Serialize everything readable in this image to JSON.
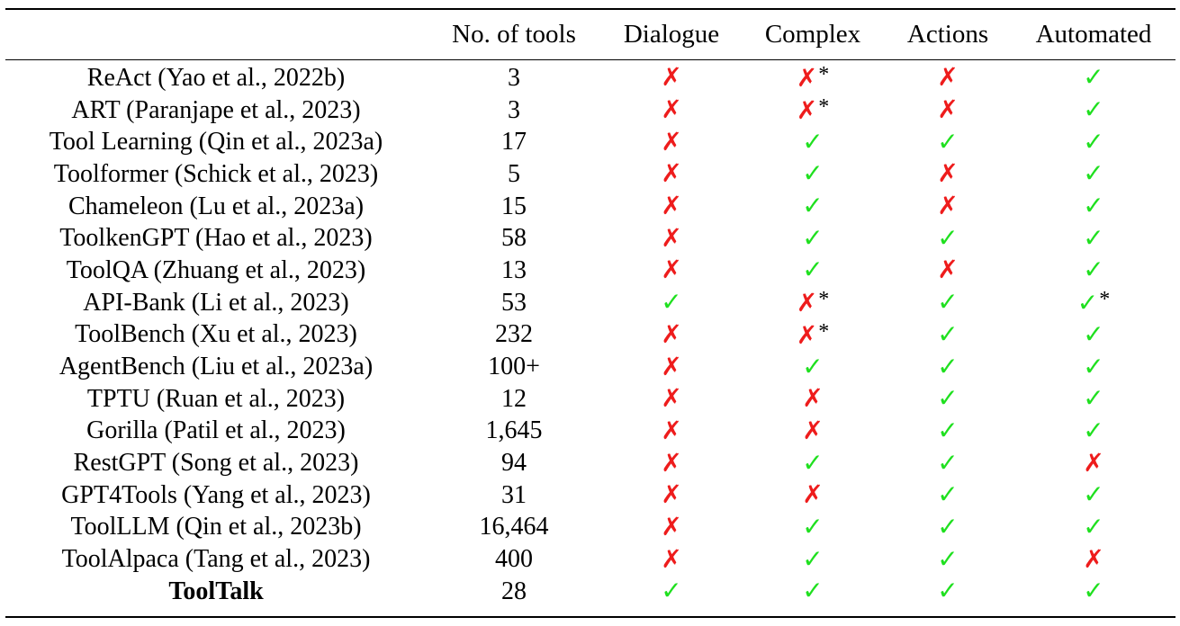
{
  "table": {
    "headers": [
      "",
      "No. of tools",
      "Dialogue",
      "Complex",
      "Actions",
      "Automated"
    ],
    "colors": {
      "check": "#1fe01f",
      "cross": "#ee1c1c"
    },
    "rows": [
      {
        "method": "ReAct (Yao et al., 2022b)",
        "tools": "3",
        "dialogue": "✗",
        "complex": "✗",
        "complex_star": "*",
        "actions": "✗",
        "automated": "✓"
      },
      {
        "method": "ART (Paranjape et al., 2023)",
        "tools": "3",
        "dialogue": "✗",
        "complex": "✗",
        "complex_star": "*",
        "actions": "✗",
        "automated": "✓"
      },
      {
        "method": "Tool Learning (Qin et al., 2023a)",
        "tools": "17",
        "dialogue": "✗",
        "complex": "✓",
        "actions": "✓",
        "automated": "✓"
      },
      {
        "method": "Toolformer (Schick et al., 2023)",
        "tools": "5",
        "dialogue": "✗",
        "complex": "✓",
        "actions": "✗",
        "automated": "✓"
      },
      {
        "method": "Chameleon (Lu et al., 2023a)",
        "tools": "15",
        "dialogue": "✗",
        "complex": "✓",
        "actions": "✗",
        "automated": "✓"
      },
      {
        "method": "ToolkenGPT (Hao et al., 2023)",
        "tools": "58",
        "dialogue": "✗",
        "complex": "✓",
        "actions": "✓",
        "automated": "✓"
      },
      {
        "method": "ToolQA (Zhuang et al., 2023)",
        "tools": "13",
        "dialogue": "✗",
        "complex": "✓",
        "actions": "✗",
        "automated": "✓"
      },
      {
        "method": "API-Bank (Li et al., 2023)",
        "tools": "53",
        "dialogue": "✓",
        "complex": "✗",
        "complex_star": "*",
        "actions": "✓",
        "automated": "✓",
        "automated_star": "*"
      },
      {
        "method": "ToolBench (Xu et al., 2023)",
        "tools": "232",
        "dialogue": "✗",
        "complex": "✗",
        "complex_star": "*",
        "actions": "✓",
        "automated": "✓"
      },
      {
        "method": "AgentBench (Liu et al., 2023a)",
        "tools": "100+",
        "dialogue": "✗",
        "complex": "✓",
        "actions": "✓",
        "automated": "✓"
      },
      {
        "method": "TPTU (Ruan et al., 2023)",
        "tools": "12",
        "dialogue": "✗",
        "complex": "✗",
        "actions": "✓",
        "automated": "✓"
      },
      {
        "method": "Gorilla (Patil et al., 2023)",
        "tools": "1,645",
        "dialogue": "✗",
        "complex": "✗",
        "actions": "✓",
        "automated": "✓"
      },
      {
        "method": "RestGPT (Song et al., 2023)",
        "tools": "94",
        "dialogue": "✗",
        "complex": "✓",
        "actions": "✓",
        "automated": "✗"
      },
      {
        "method": "GPT4Tools (Yang et al., 2023)",
        "tools": "31",
        "dialogue": "✗",
        "complex": "✗",
        "actions": "✓",
        "automated": "✓"
      },
      {
        "method": "ToolLLM (Qin et al., 2023b)",
        "tools": "16,464",
        "dialogue": "✗",
        "complex": "✓",
        "actions": "✓",
        "automated": "✓"
      },
      {
        "method": "ToolAlpaca (Tang et al., 2023)",
        "tools": "400",
        "dialogue": "✗",
        "complex": "✓",
        "actions": "✓",
        "automated": "✗"
      },
      {
        "method": "ToolTalk",
        "tools": "28",
        "dialogue": "✓",
        "complex": "✓",
        "actions": "✓",
        "automated": "✓",
        "bold": true
      }
    ]
  }
}
